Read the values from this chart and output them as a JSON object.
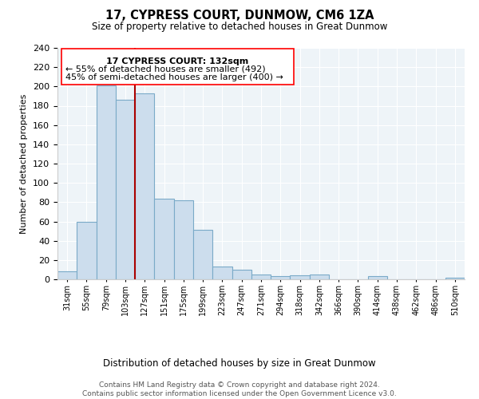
{
  "title": "17, CYPRESS COURT, DUNMOW, CM6 1ZA",
  "subtitle": "Size of property relative to detached houses in Great Dunmow",
  "xlabel": "Distribution of detached houses by size in Great Dunmow",
  "ylabel": "Number of detached properties",
  "bin_labels": [
    "31sqm",
    "55sqm",
    "79sqm",
    "103sqm",
    "127sqm",
    "151sqm",
    "175sqm",
    "199sqm",
    "223sqm",
    "247sqm",
    "271sqm",
    "294sqm",
    "318sqm",
    "342sqm",
    "366sqm",
    "390sqm",
    "414sqm",
    "438sqm",
    "462sqm",
    "486sqm",
    "510sqm"
  ],
  "bar_heights": [
    8,
    60,
    201,
    186,
    193,
    84,
    82,
    51,
    13,
    10,
    5,
    3,
    4,
    5,
    0,
    0,
    3,
    0,
    0,
    0,
    2
  ],
  "bar_color": "#ccdded",
  "bar_edge_color": "#7aaac8",
  "vline_color": "#aa0000",
  "vline_index": 4,
  "ylim": [
    0,
    240
  ],
  "yticks": [
    0,
    20,
    40,
    60,
    80,
    100,
    120,
    140,
    160,
    180,
    200,
    220,
    240
  ],
  "annotation_title": "17 CYPRESS COURT: 132sqm",
  "annotation_line1": "← 55% of detached houses are smaller (492)",
  "annotation_line2": "45% of semi-detached houses are larger (400) →",
  "footer_line1": "Contains HM Land Registry data © Crown copyright and database right 2024.",
  "footer_line2": "Contains public sector information licensed under the Open Government Licence v3.0.",
  "bg_color": "#eef4f8"
}
